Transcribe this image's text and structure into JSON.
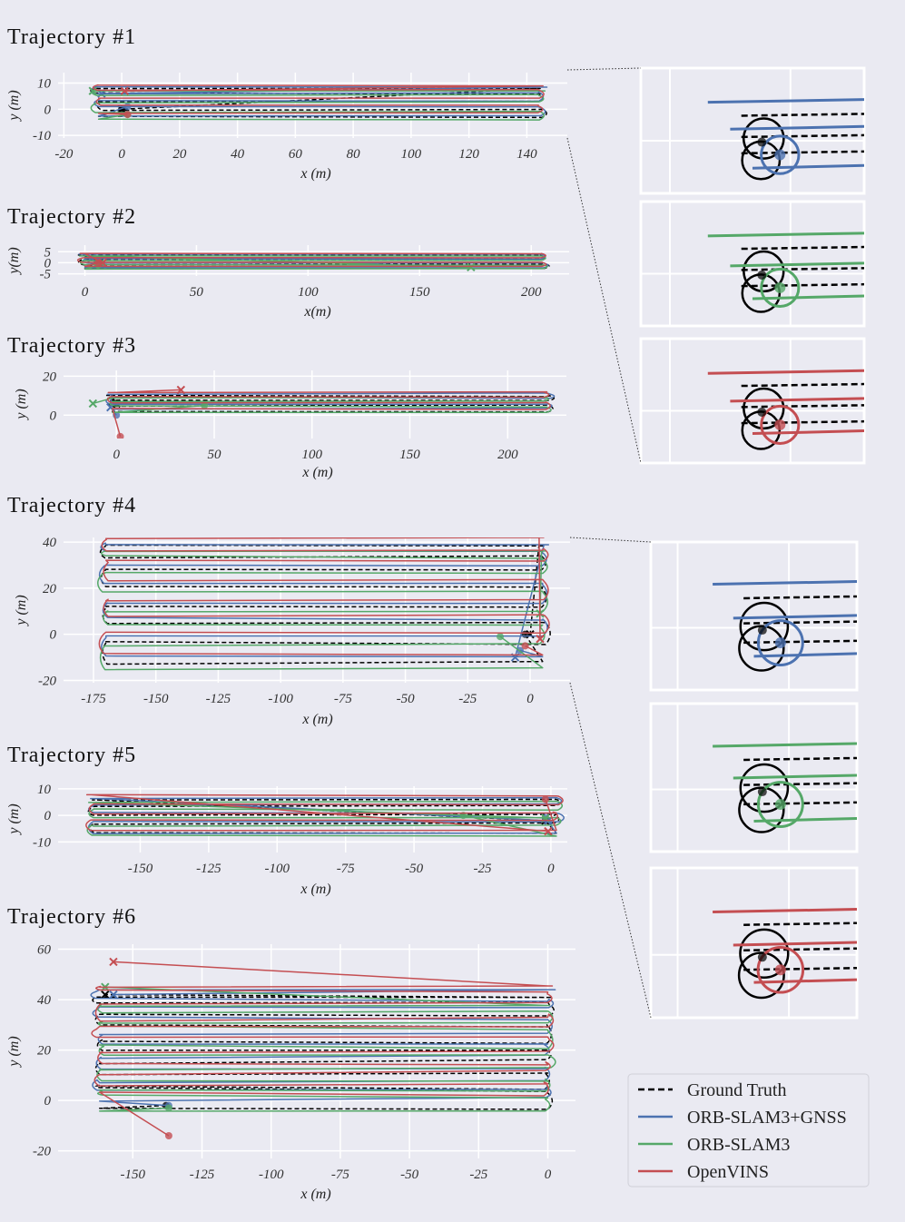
{
  "colors": {
    "ground_truth": "#000000",
    "orb_slam3_gnss": "#4c72b0",
    "orb_slam3": "#55a868",
    "openvins": "#c44e52",
    "background": "#eaeaf2",
    "grid": "#ffffff"
  },
  "legend": {
    "placement": "bottom-right",
    "entries": [
      {
        "label": "Ground Truth",
        "style": "dashed",
        "color": "#000000"
      },
      {
        "label": "ORB-SLAM3+GNSS",
        "style": "solid",
        "color": "#4c72b0"
      },
      {
        "label": "ORB-SLAM3",
        "style": "solid",
        "color": "#55a868"
      },
      {
        "label": "OpenVINS",
        "style": "solid",
        "color": "#c44e52"
      }
    ]
  },
  "chart_data": [
    {
      "type": "line",
      "title": "Trajectory #1",
      "xlabel": "x (m)",
      "ylabel": "y (m)",
      "xlim": [
        -22,
        154
      ],
      "ylim": [
        -11,
        14
      ],
      "xticks": [
        -20,
        0,
        20,
        40,
        60,
        80,
        100,
        120,
        140
      ],
      "yticks": [
        10,
        0,
        -10
      ],
      "xtick_labels": [
        "-20",
        "0",
        "20",
        "40",
        "60",
        "80",
        "100",
        "120",
        "140"
      ],
      "ytick_labels": [
        "10",
        "0",
        "-10"
      ],
      "grid": true,
      "pattern": "back-and-forth along x",
      "x_extent": [
        -8,
        144
      ],
      "lanes_y": [
        -3,
        0,
        3,
        6,
        8
      ],
      "series": [
        {
          "name": "Ground Truth",
          "start": [
            0,
            0
          ],
          "end": [
            0,
            0
          ]
        },
        {
          "name": "ORB-SLAM3+GNSS",
          "start": [
            2,
            1
          ],
          "end": [
            -7,
            6
          ]
        },
        {
          "name": "ORB-SLAM3",
          "start": [
            2,
            -2
          ],
          "end": [
            -10,
            7
          ]
        },
        {
          "name": "OpenVINS",
          "start": [
            2,
            -2
          ],
          "end": [
            1,
            7
          ]
        }
      ]
    },
    {
      "type": "line",
      "title": "Trajectory #2",
      "xlabel": "x(m)",
      "ylabel": "y(m)",
      "xlim": [
        -12,
        217
      ],
      "ylim": [
        -6,
        8
      ],
      "xticks": [
        0,
        50,
        100,
        150,
        200
      ],
      "yticks": [
        5,
        0,
        -5
      ],
      "xtick_labels": [
        "0",
        "50",
        "100",
        "150",
        "200"
      ],
      "ytick_labels": [
        "5",
        "0",
        "-5"
      ],
      "grid": true,
      "pattern": "back-and-forth along x",
      "x_extent": [
        0,
        205
      ],
      "lanes_y": [
        -2.5,
        -0.5,
        1.5,
        3.5
      ],
      "series": [
        {
          "name": "Ground Truth",
          "start": [
            6,
            0
          ],
          "end": [
            6,
            0
          ]
        },
        {
          "name": "ORB-SLAM3+GNSS",
          "start": [
            6,
            1
          ],
          "end": [
            3,
            2
          ]
        },
        {
          "name": "ORB-SLAM3",
          "start": [
            6,
            -1
          ],
          "end": [
            173,
            -2
          ]
        },
        {
          "name": "OpenVINS",
          "start": [
            6,
            0
          ],
          "end": [
            8,
            0
          ]
        }
      ]
    },
    {
      "type": "line",
      "title": "Trajectory #3",
      "xlabel": "x (m)",
      "ylabel": "y (m)",
      "xlim": [
        -27,
        230
      ],
      "ylim": [
        -12,
        23
      ],
      "xticks": [
        0,
        50,
        100,
        150,
        200
      ],
      "yticks": [
        20,
        0
      ],
      "xtick_labels": [
        "0",
        "50",
        "100",
        "150",
        "200"
      ],
      "ytick_labels": [
        "20",
        "0"
      ],
      "grid": true,
      "pattern": "back-and-forth along x",
      "x_extent": [
        -2,
        220
      ],
      "lanes_y": [
        2,
        5,
        8,
        10
      ],
      "series": [
        {
          "name": "Ground Truth",
          "start": [
            0,
            6
          ],
          "end": [
            0,
            6
          ]
        },
        {
          "name": "ORB-SLAM3+GNSS",
          "start": [
            0,
            0
          ],
          "end": [
            -3,
            4
          ]
        },
        {
          "name": "ORB-SLAM3",
          "start": [
            45,
            5
          ],
          "end": [
            -12,
            6
          ]
        },
        {
          "name": "OpenVINS",
          "start": [
            2,
            -11
          ],
          "end": [
            33,
            13
          ]
        }
      ]
    },
    {
      "type": "line",
      "title": "Trajectory #4",
      "xlabel": "x (m)",
      "ylabel": "y (m)",
      "xlim": [
        -187,
        16
      ],
      "ylim": [
        -21,
        42
      ],
      "xticks": [
        -175,
        -150,
        -125,
        -100,
        -75,
        -50,
        -25,
        0
      ],
      "yticks": [
        40,
        20,
        0,
        -20
      ],
      "xtick_labels": [
        "-175",
        "-150",
        "-125",
        "-100",
        "-75",
        "-50",
        "-25",
        "0"
      ],
      "ytick_labels": [
        "40",
        "20",
        "0",
        "-20"
      ],
      "grid": true,
      "pattern": "back-and-forth along x",
      "x_extent": [
        -170,
        5
      ],
      "lanes_y": [
        -12,
        -3,
        5,
        12,
        20,
        28,
        34,
        38
      ],
      "series": [
        {
          "name": "Ground Truth",
          "start": [
            -2,
            0
          ],
          "end": [
            0,
            0
          ]
        },
        {
          "name": "ORB-SLAM3+GNSS",
          "start": [
            -4,
            -7
          ],
          "end": [
            -6,
            -10
          ]
        },
        {
          "name": "ORB-SLAM3",
          "start": [
            -12,
            -1
          ],
          "end": [
            4,
            9
          ]
        },
        {
          "name": "OpenVINS",
          "start": [
            -2,
            -5
          ],
          "end": [
            4,
            -2
          ]
        }
      ]
    },
    {
      "type": "line",
      "title": "Trajectory #5",
      "xlabel": "x (m)",
      "ylabel": "y (m)",
      "xlim": [
        -180,
        6
      ],
      "ylim": [
        -14,
        11
      ],
      "xticks": [
        -150,
        -125,
        -100,
        -75,
        -50,
        -25,
        0
      ],
      "yticks": [
        10,
        0,
        -10
      ],
      "xtick_labels": [
        "-150",
        "-125",
        "-100",
        "-75",
        "-50",
        "-25",
        "0"
      ],
      "ytick_labels": [
        "10",
        "0",
        "-10"
      ],
      "grid": true,
      "pattern": "back-and-forth along x",
      "x_extent": [
        -167,
        2
      ],
      "lanes_y": [
        -7,
        -3,
        0,
        3,
        6
      ],
      "series": [
        {
          "name": "Ground Truth",
          "start": [
            -2,
            -2
          ],
          "end": [
            -2,
            -2
          ]
        },
        {
          "name": "ORB-SLAM3+GNSS",
          "start": [
            -2,
            -1
          ],
          "end": [
            -1,
            -2
          ]
        },
        {
          "name": "ORB-SLAM3",
          "start": [
            -32,
            0
          ],
          "end": [
            -2,
            -1
          ]
        },
        {
          "name": "OpenVINS",
          "start": [
            -2,
            6
          ],
          "end": [
            -1,
            -6
          ]
        }
      ]
    },
    {
      "type": "line",
      "title": "Trajectory #6",
      "xlabel": "x (m)",
      "ylabel": "y (m)",
      "xlim": [
        -177,
        10
      ],
      "ylim": [
        -23,
        62
      ],
      "xticks": [
        -150,
        -125,
        -100,
        -75,
        -50,
        -25,
        0
      ],
      "yticks": [
        60,
        40,
        20,
        0,
        -20
      ],
      "xtick_labels": [
        "-150",
        "-125",
        "-100",
        "-75",
        "-50",
        "-25",
        "0"
      ],
      "ytick_labels": [
        "60",
        "40",
        "20",
        "0",
        "-20"
      ],
      "grid": true,
      "pattern": "back-and-forth along x",
      "x_extent": [
        -162,
        0
      ],
      "lanes_y": [
        -2,
        3,
        6,
        11,
        15,
        20,
        24,
        30,
        34,
        38,
        41
      ],
      "series": [
        {
          "name": "Ground Truth",
          "start": [
            -138,
            -2
          ],
          "end": [
            -160,
            42
          ]
        },
        {
          "name": "ORB-SLAM3+GNSS",
          "start": [
            -137,
            -2
          ],
          "end": [
            -157,
            42
          ]
        },
        {
          "name": "ORB-SLAM3",
          "start": [
            -137,
            -3
          ],
          "end": [
            -160,
            45
          ]
        },
        {
          "name": "OpenVINS",
          "start": [
            -137,
            -14
          ],
          "end": [
            -157,
            55
          ]
        }
      ]
    }
  ]
}
